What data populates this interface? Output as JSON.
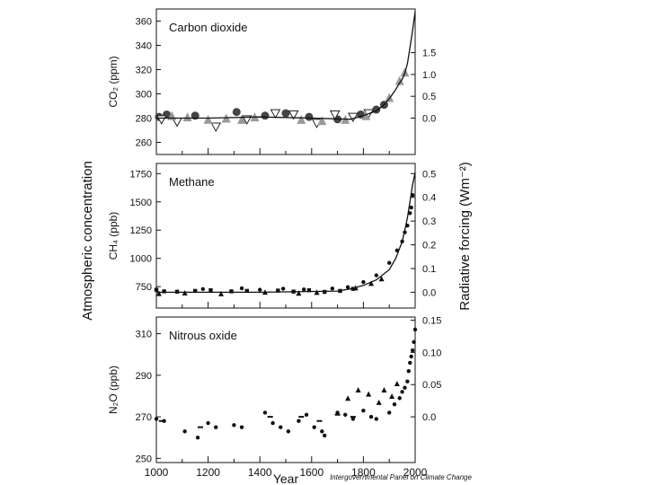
{
  "figure": {
    "left_axis_label": "Atmospheric concentration",
    "right_axis_label": "Radiative forcing  (Wm⁻²)",
    "x_axis_label": "Year",
    "credit": "Intergovernmental Panel on Climate Change"
  },
  "chart_data": [
    {
      "type": "scatter",
      "title": "Carbon dioxide",
      "ylabel": "CO₂ (ppm)",
      "xlim": [
        1000,
        2000
      ],
      "ylim": [
        250,
        370
      ],
      "yticks": [
        260,
        280,
        300,
        320,
        340,
        360
      ],
      "right_axis": {
        "ticks": [
          0.0,
          0.5,
          1.0,
          1.5
        ],
        "tick_labels": [
          "0.0",
          "0.5",
          "1.0",
          "1.5"
        ],
        "offset": 280,
        "per_unit": 36
      },
      "series": [
        {
          "marker": "circle",
          "x": [
            1010,
            1040,
            1150,
            1310,
            1420,
            1500,
            1590,
            1700,
            1790,
            1850,
            1880
          ],
          "y": [
            281,
            283,
            282,
            285,
            282,
            284,
            281,
            279,
            283,
            287,
            291
          ]
        },
        {
          "marker": "triangle-down",
          "x": [
            1020,
            1080,
            1230,
            1350,
            1460,
            1530,
            1620,
            1690,
            1760,
            1820
          ],
          "y": [
            279,
            277,
            273,
            279,
            284,
            283,
            276,
            283,
            281,
            284
          ]
        },
        {
          "marker": "triangle-up",
          "x": [
            1060,
            1120,
            1200,
            1270,
            1330,
            1380,
            1560,
            1640,
            1730,
            1810,
            1900,
            1940,
            1960
          ],
          "y": [
            282,
            281,
            279,
            280,
            279,
            281,
            279,
            278,
            279,
            282,
            297,
            311,
            318
          ]
        },
        {
          "marker": "line",
          "x": [
            1000,
            1200,
            1400,
            1600,
            1750,
            1800,
            1850,
            1880,
            1900,
            1920,
            1940,
            1950,
            1960,
            1970,
            1980,
            1990,
            2000
          ],
          "y": [
            280,
            280,
            281,
            280,
            279,
            282,
            286,
            291,
            296,
            302,
            309,
            312,
            317,
            325,
            338,
            352,
            368
          ]
        }
      ]
    },
    {
      "type": "scatter",
      "title": "Methane",
      "ylabel": "CH₄ (ppb)",
      "xlim": [
        1000,
        2000
      ],
      "ylim": [
        560,
        1840
      ],
      "yticks": [
        750,
        1000,
        1250,
        1500,
        1750
      ],
      "right_axis": {
        "ticks": [
          0.0,
          0.1,
          0.2,
          0.3,
          0.4,
          0.5
        ],
        "tick_labels": [
          "0.0",
          "0.1",
          "0.2",
          "0.3",
          "0.4",
          "0.5"
        ],
        "offset": 700,
        "per_unit": 2100
      },
      "series": [
        {
          "marker": "square",
          "x": [
            1000,
            1030,
            1080,
            1150,
            1210,
            1290,
            1350,
            1470,
            1530,
            1590,
            1650,
            1710,
            1760
          ],
          "y": [
            722,
            708,
            705,
            712,
            718,
            708,
            712,
            715,
            706,
            718,
            703,
            712,
            730
          ]
        },
        {
          "marker": "triangle-up",
          "x": [
            1010,
            1110,
            1250,
            1420,
            1550,
            1620,
            1770,
            1830,
            1870
          ],
          "y": [
            690,
            695,
            688,
            702,
            693,
            700,
            740,
            780,
            820
          ]
        },
        {
          "marker": "circle",
          "x": [
            1180,
            1330,
            1400,
            1490,
            1570,
            1680,
            1740,
            1800,
            1850,
            1900,
            1930,
            1950,
            1960,
            1970,
            1980,
            1985,
            1990
          ],
          "y": [
            728,
            735,
            722,
            731,
            725,
            733,
            745,
            790,
            850,
            960,
            1070,
            1150,
            1230,
            1290,
            1400,
            1450,
            1560
          ]
        },
        {
          "marker": "line",
          "x": [
            1000,
            1400,
            1700,
            1750,
            1800,
            1850,
            1900,
            1925,
            1950,
            1960,
            1970,
            1980,
            1990,
            2000
          ],
          "y": [
            700,
            700,
            710,
            730,
            760,
            810,
            900,
            1000,
            1150,
            1250,
            1360,
            1500,
            1650,
            1760
          ]
        }
      ]
    },
    {
      "type": "scatter",
      "title": "Nitrous oxide",
      "ylabel": "N₂O (ppb)",
      "xlim": [
        1000,
        2000
      ],
      "ylim": [
        248,
        318
      ],
      "yticks": [
        250,
        270,
        290,
        310
      ],
      "xticks": [
        1000,
        1200,
        1400,
        1600,
        1800,
        2000
      ],
      "right_axis": {
        "ticks": [
          0.0,
          0.05,
          0.1,
          0.15
        ],
        "tick_labels": [
          "0.0",
          "0.05",
          "0.10",
          "0.15"
        ],
        "offset": 270,
        "per_unit": 310
      },
      "series": [
        {
          "marker": "circle",
          "x": [
            1000,
            1030,
            1110,
            1160,
            1200,
            1230,
            1300,
            1330,
            1420,
            1450,
            1480,
            1510,
            1550,
            1580,
            1610,
            1640,
            1650,
            1700,
            1730,
            1760,
            1800,
            1830,
            1850,
            1900,
            1920,
            1940,
            1950,
            1960,
            1970,
            1975,
            1980,
            1985,
            1990,
            1995,
            2000
          ],
          "y": [
            269,
            268,
            263,
            260,
            267,
            265,
            266,
            265,
            272,
            267,
            265,
            263,
            268,
            271,
            265,
            263,
            261,
            272,
            271,
            269,
            273,
            270,
            269,
            272,
            276,
            279,
            282,
            284,
            287,
            292,
            296,
            299,
            302,
            306,
            312
          ]
        },
        {
          "marker": "triangle-up",
          "x": [
            1740,
            1780,
            1820,
            1860,
            1880,
            1910,
            1930
          ],
          "y": [
            279,
            283,
            281,
            277,
            283,
            280,
            286
          ]
        },
        {
          "marker": "dash",
          "x": [
            1020,
            1170,
            1440,
            1560,
            1630,
            1700,
            1760
          ],
          "y": [
            268,
            265,
            270,
            270,
            268,
            271,
            270
          ]
        }
      ]
    }
  ]
}
